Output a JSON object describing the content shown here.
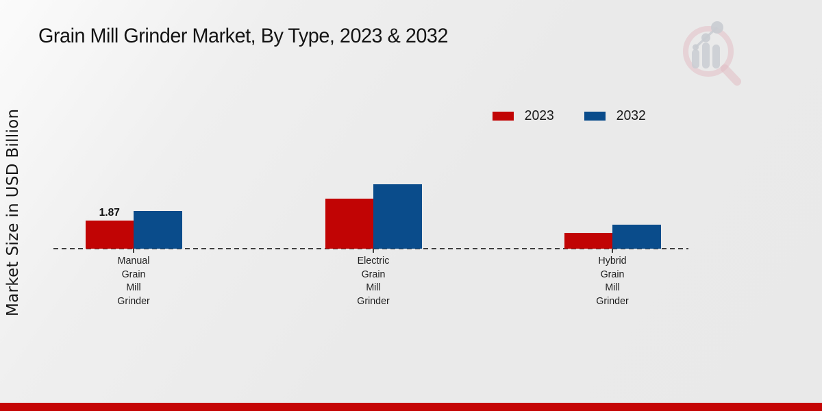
{
  "title": "Grain Mill Grinder Market, By Type, 2023 & 2032",
  "y_axis": {
    "label": "Market Size in USD Billion"
  },
  "legend": {
    "items": [
      {
        "label": "2023",
        "color": "#c10404"
      },
      {
        "label": "2032",
        "color": "#0a4c8b"
      }
    ]
  },
  "chart_data": {
    "type": "bar",
    "title": "Grain Mill Grinder Market, By Type, 2023 & 2032",
    "ylabel": "Market Size in USD Billion",
    "unit": "USD Billion",
    "categories": [
      "Manual Grain Mill Grinder",
      "Electric Grain Mill Grinder",
      "Hybrid Grain Mill Grinder"
    ],
    "category_lines": [
      [
        "Manual",
        "Grain",
        "Mill",
        "Grinder"
      ],
      [
        "Electric",
        "Grain",
        "Mill",
        "Grinder"
      ],
      [
        "Hybrid",
        "Grain",
        "Mill",
        "Grinder"
      ]
    ],
    "series": [
      {
        "name": "2023",
        "color": "#c10404",
        "values": [
          1.87,
          3.33,
          1.05
        ]
      },
      {
        "name": "2032",
        "color": "#0a4c8b",
        "values": [
          2.51,
          4.29,
          1.6
        ]
      }
    ],
    "data_labels": [
      {
        "series_index": 0,
        "category_index": 0,
        "text": "1.87"
      }
    ],
    "baseline_value": 0,
    "grid": false,
    "axis_line_style": "dashed",
    "legend_position": "top-right"
  },
  "watermark": {
    "icon": "magnifier-bar-chart-logo"
  },
  "footer": {
    "color": "#c50505"
  }
}
